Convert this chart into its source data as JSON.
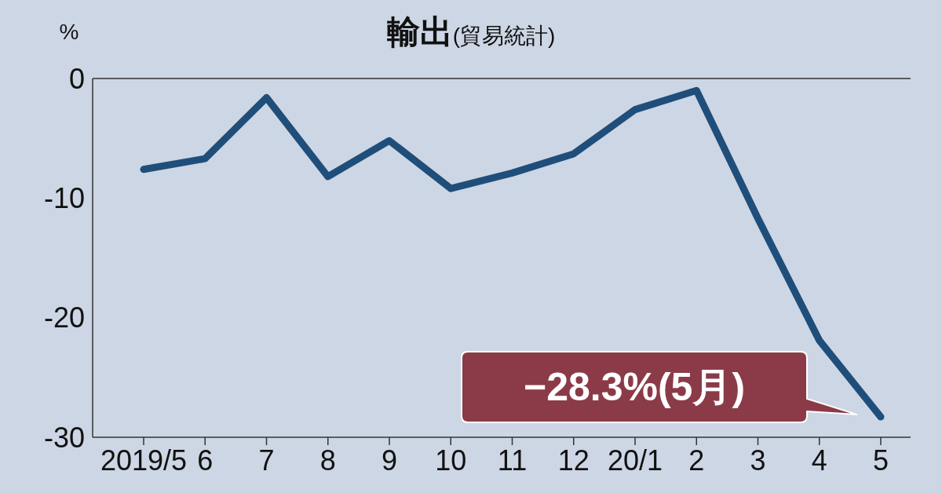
{
  "chart_data": {
    "type": "line",
    "title": "輸出",
    "subtitle": "(貿易統計)",
    "ylabel": "%",
    "categories": [
      "2019/5",
      "6",
      "7",
      "8",
      "9",
      "10",
      "11",
      "12",
      "20/1",
      "2",
      "3",
      "4",
      "5"
    ],
    "series": [
      {
        "color": "#1f4e7a",
        "values": [
          -7.6,
          -6.7,
          -1.6,
          -8.2,
          -5.2,
          -9.2,
          -7.9,
          -6.3,
          -2.6,
          -1.0,
          -11.7,
          -21.9,
          -28.3
        ]
      }
    ],
    "ylim": [
      -30,
      0
    ],
    "yticks": [
      {
        "value": -30,
        "label": "-30"
      },
      {
        "value": -20,
        "label": "-20"
      },
      {
        "value": -10,
        "label": "-10"
      },
      0
    ],
    "grid": false,
    "marker": "none",
    "line_style": "solid",
    "annotations": [
      "−28.3%(5月)"
    ]
  }
}
